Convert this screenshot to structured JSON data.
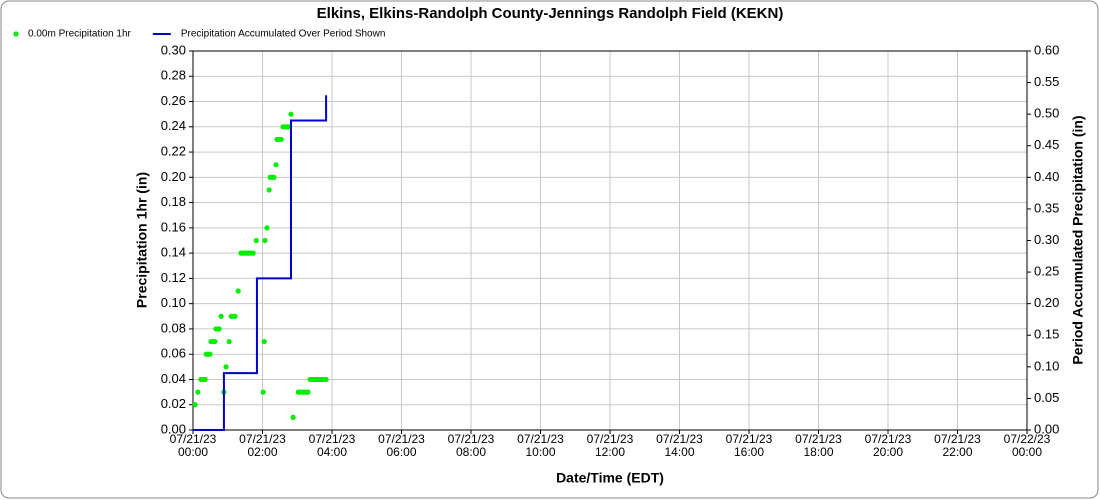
{
  "chart_data": {
    "type": "combo",
    "title": "Elkins, Elkins-Randolph County-Jennings Randolph Field (KEKN)",
    "xlabel": "Date/Time (EDT)",
    "ylabel": "Precipitation 1hr (in)",
    "y2label": "Period Accumulated Precipitation (in)",
    "grid": true,
    "legend": "top-left",
    "xlim": [
      0,
      24
    ],
    "xticks": [
      {
        "value": 0,
        "label": "07/21/23\n00:00"
      },
      {
        "value": 2,
        "label": "07/21/23\n02:00"
      },
      {
        "value": 4,
        "label": "07/21/23\n04:00"
      },
      {
        "value": 6,
        "label": "07/21/23\n06:00"
      },
      {
        "value": 8,
        "label": "07/21/23\n08:00"
      },
      {
        "value": 10,
        "label": "07/21/23\n10:00"
      },
      {
        "value": 12,
        "label": "07/21/23\n12:00"
      },
      {
        "value": 14,
        "label": "07/21/23\n14:00"
      },
      {
        "value": 16,
        "label": "07/21/23\n16:00"
      },
      {
        "value": 18,
        "label": "07/21/23\n18:00"
      },
      {
        "value": 20,
        "label": "07/21/23\n20:00"
      },
      {
        "value": 22,
        "label": "07/21/23\n22:00"
      },
      {
        "value": 24,
        "label": "07/22/23\n00:00"
      }
    ],
    "ylim": [
      0,
      0.3
    ],
    "yticks": [
      {
        "value": 0,
        "label": "0.00"
      },
      {
        "value": 0.02,
        "label": "0.02"
      },
      {
        "value": 0.04,
        "label": "0.04"
      },
      {
        "value": 0.06,
        "label": "0.06"
      },
      {
        "value": 0.08,
        "label": "0.08"
      },
      {
        "value": 0.1,
        "label": "0.10"
      },
      {
        "value": 0.12,
        "label": "0.12"
      },
      {
        "value": 0.14,
        "label": "0.14"
      },
      {
        "value": 0.16,
        "label": "0.16"
      },
      {
        "value": 0.18,
        "label": "0.18"
      },
      {
        "value": 0.2,
        "label": "0.20"
      },
      {
        "value": 0.22,
        "label": "0.22"
      },
      {
        "value": 0.24,
        "label": "0.24"
      },
      {
        "value": 0.26,
        "label": "0.26"
      },
      {
        "value": 0.28,
        "label": "0.28"
      },
      {
        "value": 0.3,
        "label": "0.30"
      }
    ],
    "y2lim": [
      0,
      0.6
    ],
    "y2ticks": [
      {
        "value": 0,
        "label": "0.00"
      },
      {
        "value": 0.05,
        "label": "0.05"
      },
      {
        "value": 0.1,
        "label": "0.10"
      },
      {
        "value": 0.15,
        "label": "0.15"
      },
      {
        "value": 0.2,
        "label": "0.20"
      },
      {
        "value": 0.25,
        "label": "0.25"
      },
      {
        "value": 0.3,
        "label": "0.30"
      },
      {
        "value": 0.35,
        "label": "0.35"
      },
      {
        "value": 0.4,
        "label": "0.40"
      },
      {
        "value": 0.45,
        "label": "0.45"
      },
      {
        "value": 0.5,
        "label": "0.50"
      },
      {
        "value": 0.55,
        "label": "0.55"
      },
      {
        "value": 0.6,
        "label": "0.60"
      }
    ],
    "series": [
      {
        "name": "0.00m Precipitation 1hr",
        "type": "scatter",
        "color": "#00ee00",
        "x": [
          0.06,
          0.14,
          0.23,
          0.29,
          0.35,
          0.38,
          0.43,
          0.49,
          0.52,
          0.58,
          0.63,
          0.66,
          0.72,
          0.75,
          0.81,
          0.89,
          0.95,
          1.04,
          1.1,
          1.15,
          1.21,
          1.3,
          1.38,
          1.44,
          1.5,
          1.56,
          1.61,
          1.67,
          1.73,
          1.82,
          2.02,
          2.05,
          2.07,
          2.13,
          2.19,
          2.22,
          2.28,
          2.33,
          2.39,
          2.42,
          2.48,
          2.54,
          2.59,
          2.65,
          2.71,
          2.77,
          2.82,
          2.88,
          3.03,
          3.08,
          3.14,
          3.2,
          3.26,
          3.31,
          3.37,
          3.43,
          3.49,
          3.54,
          3.6,
          3.66,
          3.72,
          3.78,
          3.83
        ],
        "values": [
          0.02,
          0.03,
          0.04,
          0.04,
          0.04,
          0.06,
          0.06,
          0.06,
          0.07,
          0.07,
          0.07,
          0.08,
          0.08,
          0.08,
          0.09,
          0.03,
          0.05,
          0.07,
          0.09,
          0.09,
          0.09,
          0.11,
          0.14,
          0.14,
          0.14,
          0.14,
          0.14,
          0.14,
          0.14,
          0.15,
          0.03,
          0.07,
          0.15,
          0.16,
          0.19,
          0.2,
          0.2,
          0.2,
          0.21,
          0.23,
          0.23,
          0.23,
          0.24,
          0.24,
          0.24,
          0.24,
          0.25,
          0.01,
          0.03,
          0.03,
          0.03,
          0.03,
          0.03,
          0.03,
          0.04,
          0.04,
          0.04,
          0.04,
          0.04,
          0.04,
          0.04,
          0.04,
          0.04
        ]
      },
      {
        "name": "Precipitation Accumulated Over Period Shown",
        "type": "line",
        "axis": "y2",
        "color": "#0000cc",
        "x": [
          0,
          0.89,
          0.89,
          1.84,
          1.84,
          2.82,
          2.82,
          3.83,
          3.83
        ],
        "values": [
          0,
          0,
          0.09,
          0.09,
          0.24,
          0.24,
          0.49,
          0.49,
          0.53
        ]
      }
    ]
  }
}
